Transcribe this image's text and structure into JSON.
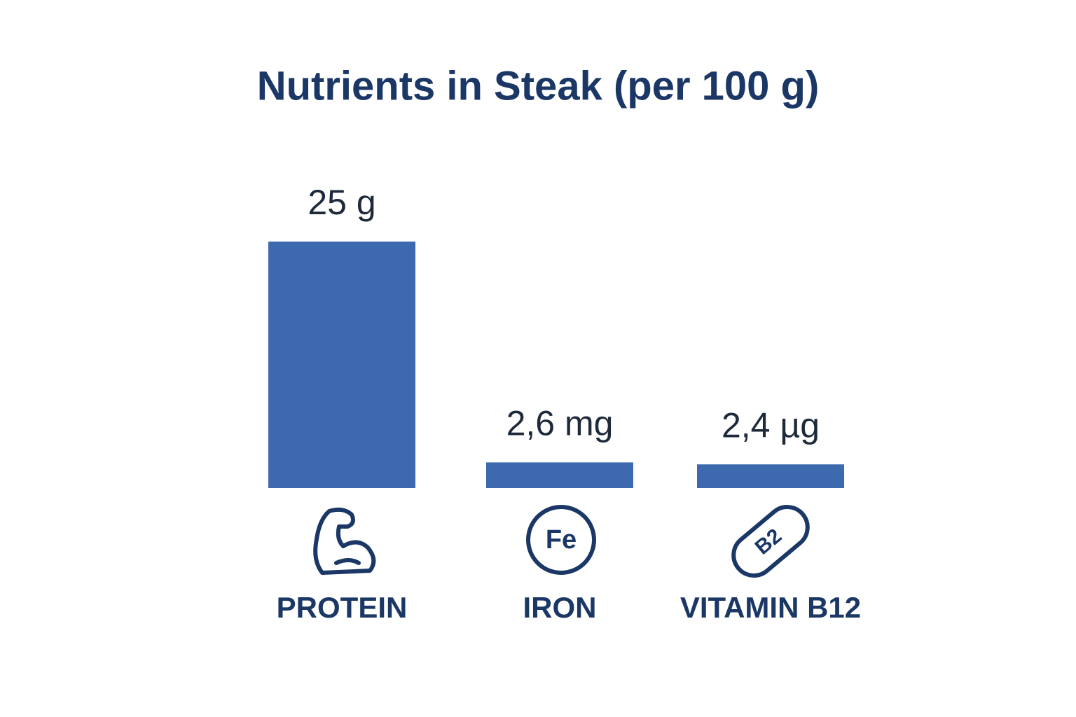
{
  "chart_data": {
    "type": "bar",
    "title": "Nutrients in Steak (per 100 g)",
    "categories": [
      "PROTEIN",
      "IRON",
      "VITAMIN B12"
    ],
    "values": [
      25,
      2.6,
      2.4
    ],
    "value_labels": [
      "25 g",
      "2,6 mg",
      "2,4 µg"
    ],
    "icon_labels": [
      null,
      "Fe",
      "B2"
    ],
    "color": "#3d6aae"
  }
}
